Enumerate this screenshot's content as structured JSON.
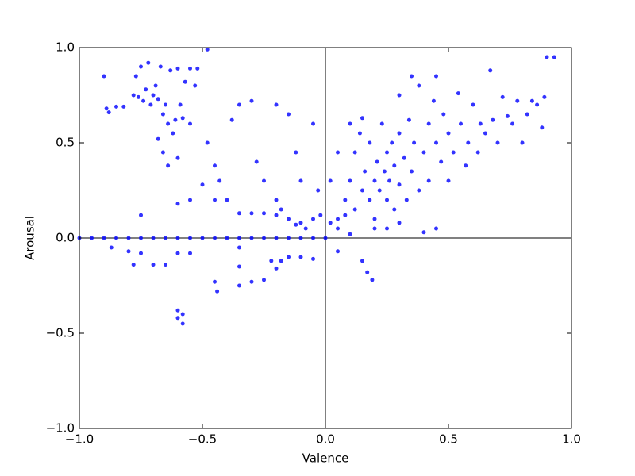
{
  "chart_data": {
    "type": "scatter",
    "x_label": "Valence",
    "y_label": "Arousal",
    "color": "#0000ff",
    "zero_lines": true,
    "xlim": [
      -1,
      1
    ],
    "ylim": [
      -1,
      1
    ],
    "xticks": [
      {
        "value": -1,
        "label": "−1.0"
      },
      {
        "value": -0.5,
        "label": "−0.5"
      },
      {
        "value": 0,
        "label": "0.0"
      },
      {
        "value": 0.5,
        "label": "0.5"
      },
      {
        "value": 1,
        "label": "1.0"
      }
    ],
    "yticks": [
      {
        "value": -1,
        "label": "−1.0"
      },
      {
        "value": -0.5,
        "label": "−0.5"
      },
      {
        "value": 0,
        "label": "0.0"
      },
      {
        "value": 0.5,
        "label": "0.5"
      },
      {
        "value": 1,
        "label": "1.0"
      }
    ],
    "x": [
      -0.9,
      -0.89,
      -0.88,
      -0.85,
      -0.82,
      -0.78,
      -0.77,
      -0.76,
      -0.75,
      -0.74,
      -0.73,
      -0.72,
      -0.71,
      -0.7,
      -0.69,
      -0.68,
      -0.67,
      -0.66,
      -0.65,
      -0.64,
      -0.63,
      -0.62,
      -0.61,
      -0.6,
      -0.58,
      -0.55,
      -0.52,
      -0.68,
      -0.66,
      -0.64,
      -0.6,
      -0.55,
      -0.53,
      -0.48,
      -0.57,
      -0.59,
      -0.45,
      -0.43,
      -0.48,
      -0.4,
      -0.38,
      -0.35,
      -0.3,
      -0.28,
      -0.25,
      -0.2,
      -0.2,
      -0.15,
      -0.12,
      -0.1,
      -0.05,
      -0.03,
      -0.3,
      -0.35,
      -0.25,
      -0.2,
      -0.15,
      -0.1,
      -0.05,
      -0.02,
      -0.08,
      -0.12,
      -0.18,
      -0.5,
      -0.55,
      -0.6,
      -0.75,
      -0.45,
      -1,
      -0.95,
      -0.9,
      -0.85,
      -0.8,
      -0.75,
      -0.7,
      -0.65,
      -0.6,
      -0.55,
      -0.5,
      -0.45,
      -0.4,
      -0.35,
      -0.3,
      -0.25,
      -0.2,
      -0.15,
      -0.1,
      -0.05,
      0,
      -0.8,
      -0.78,
      -0.7,
      -0.65,
      -0.6,
      -0.55,
      -0.75,
      -0.45,
      -0.44,
      -0.35,
      -0.35,
      -0.35,
      -0.3,
      -0.25,
      -0.22,
      -0.2,
      -0.18,
      -0.15,
      -0.1,
      -0.05,
      -0.6,
      -0.6,
      -0.58,
      -0.58,
      0.15,
      0.19,
      0.05,
      0.17,
      -0.87,
      0.05,
      0.08,
      0.1,
      0.12,
      0.12,
      0.14,
      0.15,
      0.16,
      0.18,
      0.18,
      0.2,
      0.2,
      0.21,
      0.22,
      0.23,
      0.24,
      0.25,
      0.25,
      0.26,
      0.27,
      0.28,
      0.28,
      0.3,
      0.3,
      0.32,
      0.33,
      0.34,
      0.35,
      0.36,
      0.38,
      0.38,
      0.4,
      0.42,
      0.42,
      0.44,
      0.45,
      0.47,
      0.48,
      0.5,
      0.5,
      0.52,
      0.54,
      0.55,
      0.57,
      0.58,
      0.6,
      0.62,
      0.63,
      0.65,
      0.67,
      0.68,
      0.7,
      0.72,
      0.74,
      0.76,
      0.78,
      0.8,
      0.82,
      0.84,
      0.86,
      0.88,
      0.89,
      0.9,
      0.93,
      0.35,
      0.45,
      0.3,
      0.02,
      0.05,
      0.1,
      0.15,
      0.2,
      0.25,
      0.3,
      0.4,
      0.45,
      0.02,
      0.05,
      0.08,
      0.1
    ],
    "values": [
      0.85,
      0.68,
      0.66,
      0.69,
      0.69,
      0.75,
      0.85,
      0.74,
      0.9,
      0.72,
      0.78,
      0.92,
      0.7,
      0.75,
      0.8,
      0.73,
      0.9,
      0.65,
      0.7,
      0.6,
      0.88,
      0.55,
      0.62,
      0.89,
      0.63,
      0.89,
      0.89,
      0.52,
      0.45,
      0.38,
      0.42,
      0.6,
      0.8,
      0.99,
      0.82,
      0.7,
      0.38,
      0.3,
      0.5,
      0.2,
      0.62,
      0.7,
      0.72,
      0.4,
      0.3,
      0.7,
      0.2,
      0.65,
      0.45,
      0.3,
      0.6,
      0.25,
      0.13,
      0.13,
      0.13,
      0.12,
      0.1,
      0.08,
      0.1,
      0.12,
      0.05,
      0.07,
      0.15,
      0.28,
      0.2,
      0.18,
      0.12,
      0.2,
      0,
      0,
      0,
      0,
      0,
      0,
      0,
      0,
      0,
      0,
      0,
      0,
      0,
      0,
      0,
      0,
      0,
      0,
      0,
      0,
      0,
      -0.07,
      -0.14,
      -0.14,
      -0.14,
      -0.08,
      -0.08,
      -0.08,
      -0.23,
      -0.28,
      -0.25,
      -0.05,
      -0.15,
      -0.23,
      -0.22,
      -0.12,
      -0.16,
      -0.12,
      -0.1,
      -0.1,
      -0.11,
      -0.38,
      -0.42,
      -0.45,
      -0.4,
      -0.12,
      -0.22,
      -0.07,
      -0.18,
      -0.05,
      0.1,
      0.2,
      0.3,
      0.15,
      0.45,
      0.55,
      0.25,
      0.35,
      0.2,
      0.5,
      0.1,
      0.3,
      0.4,
      0.25,
      0.6,
      0.35,
      0.2,
      0.45,
      0.3,
      0.5,
      0.15,
      0.38,
      0.28,
      0.55,
      0.42,
      0.2,
      0.62,
      0.35,
      0.5,
      0.25,
      0.8,
      0.45,
      0.6,
      0.3,
      0.72,
      0.5,
      0.4,
      0.65,
      0.55,
      0.3,
      0.45,
      0.76,
      0.6,
      0.38,
      0.5,
      0.7,
      0.45,
      0.6,
      0.55,
      0.88,
      0.62,
      0.5,
      0.74,
      0.64,
      0.6,
      0.72,
      0.5,
      0.65,
      0.72,
      0.7,
      0.58,
      0.74,
      0.95,
      0.95,
      0.85,
      0.85,
      0.75,
      0.3,
      0.45,
      0.6,
      0.63,
      0.05,
      0.05,
      0.08,
      0.03,
      0.05,
      0.08,
      0.05,
      0.12,
      0.02
    ]
  }
}
